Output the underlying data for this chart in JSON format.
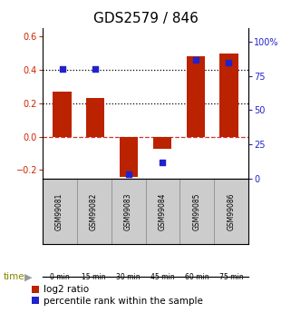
{
  "title": "GDS2579 / 846",
  "samples": [
    "GSM99081",
    "GSM99082",
    "GSM99083",
    "GSM99084",
    "GSM99085",
    "GSM99086"
  ],
  "time_labels": [
    "0 min",
    "15 min",
    "30 min",
    "45 min",
    "60 min",
    "75 min"
  ],
  "time_colors": [
    "#d4f5d4",
    "#d4f5d4",
    "#b8e8b8",
    "#88dd88",
    "#55cc55",
    "#33bb33"
  ],
  "log2_values": [
    0.27,
    0.23,
    -0.24,
    -0.07,
    0.48,
    0.5
  ],
  "percentile_values": [
    80,
    80,
    3,
    12,
    87,
    85
  ],
  "bar_color": "#bb2200",
  "dot_color": "#2222cc",
  "left_ylim": [
    -0.25,
    0.65
  ],
  "right_ylim": [
    0,
    110
  ],
  "left_yticks": [
    -0.2,
    0.0,
    0.2,
    0.4,
    0.6
  ],
  "right_yticks": [
    0,
    25,
    50,
    75,
    100
  ],
  "right_ytick_labels": [
    "0",
    "25",
    "50",
    "75",
    "100%"
  ],
  "hline_dashed_val": 0.0,
  "hline_dot_vals": [
    0.2,
    0.4
  ],
  "bar_width": 0.55,
  "title_fontsize": 11,
  "tick_fontsize": 7,
  "legend_fontsize": 7.5,
  "gsm_bg": "#cccccc",
  "gsm_border": "#888888"
}
